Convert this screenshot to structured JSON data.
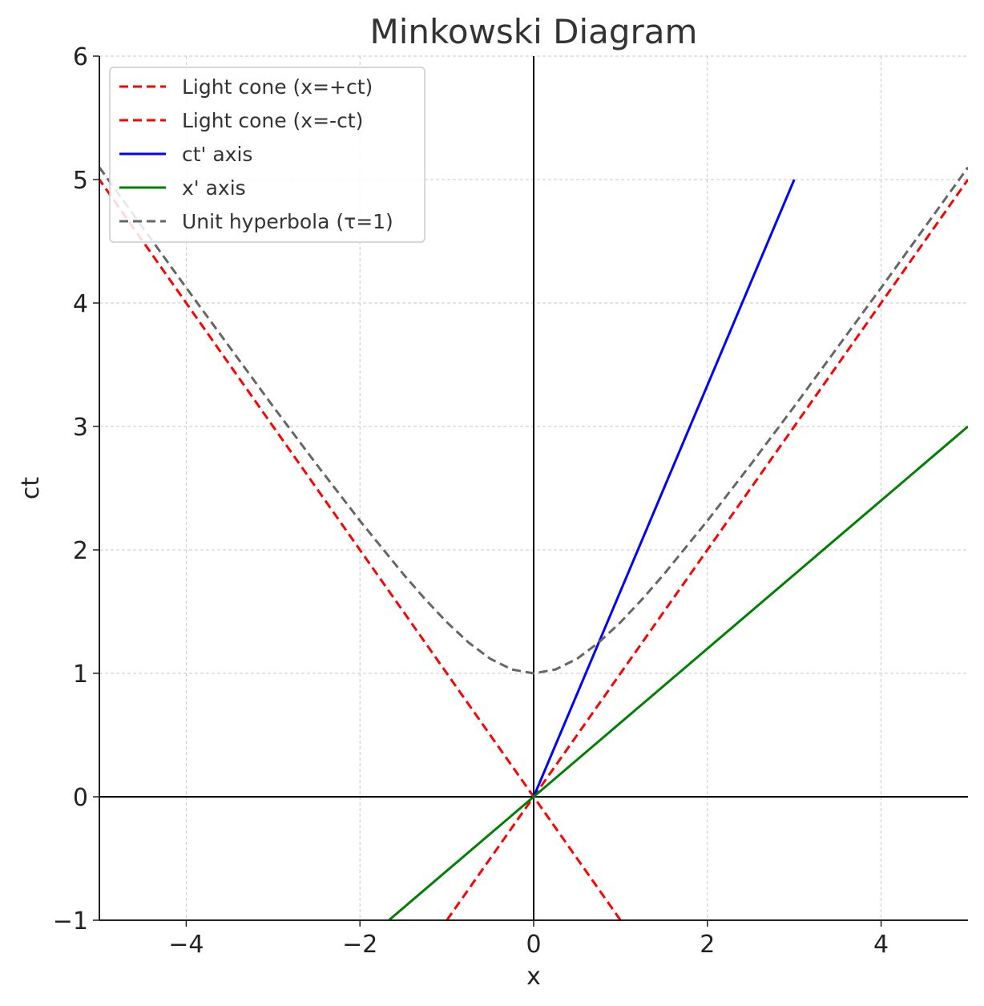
{
  "chart_data": {
    "type": "line",
    "title": "Minkowski Diagram",
    "xlabel": "x",
    "ylabel": "ct",
    "xlim": [
      -5,
      5
    ],
    "ylim": [
      -1,
      6
    ],
    "grid": true,
    "legend_position": "top-left",
    "x_ticks": [
      {
        "value": -4,
        "label": "−4"
      },
      {
        "value": -2,
        "label": "−2"
      },
      {
        "value": 0,
        "label": "0"
      },
      {
        "value": 2,
        "label": "2"
      },
      {
        "value": 4,
        "label": "4"
      }
    ],
    "y_ticks": [
      {
        "value": -1,
        "label": "−1"
      },
      {
        "value": 0,
        "label": "0"
      },
      {
        "value": 1,
        "label": "1"
      },
      {
        "value": 2,
        "label": "2"
      },
      {
        "value": 3,
        "label": "3"
      },
      {
        "value": 4,
        "label": "4"
      },
      {
        "value": 5,
        "label": "5"
      },
      {
        "value": 6,
        "label": "6"
      }
    ],
    "reference_lines": [
      {
        "orientation": "horizontal",
        "value": 0,
        "color": "#000000"
      },
      {
        "orientation": "vertical",
        "value": 0,
        "color": "#000000"
      }
    ],
    "series": [
      {
        "name": "Light cone (x=+ct)",
        "color": "#ff0000",
        "dashed": true,
        "points": [
          [
            -1,
            -1
          ],
          [
            5,
            5
          ]
        ]
      },
      {
        "name": "Light cone (x=-ct)",
        "color": "#ff0000",
        "dashed": true,
        "points": [
          [
            1,
            -1
          ],
          [
            -5,
            5
          ]
        ]
      },
      {
        "name": "ct' axis",
        "color": "#0000ff",
        "dashed": false,
        "points": [
          [
            0,
            0
          ],
          [
            3,
            5
          ]
        ]
      },
      {
        "name": "x' axis",
        "color": "#008000",
        "dashed": false,
        "points": [
          [
            -1.667,
            -1
          ],
          [
            5,
            3
          ]
        ]
      },
      {
        "name": "Unit hyperbola (τ=1)",
        "color": "#666666",
        "dashed": true,
        "points": [
          [
            -5,
            5.099
          ],
          [
            -4,
            4.123
          ],
          [
            -3,
            3.162
          ],
          [
            -2.5,
            2.693
          ],
          [
            -2,
            2.236
          ],
          [
            -1.5,
            1.803
          ],
          [
            -1.25,
            1.601
          ],
          [
            -1,
            1.414
          ],
          [
            -0.75,
            1.25
          ],
          [
            -0.5,
            1.118
          ],
          [
            -0.25,
            1.031
          ],
          [
            0,
            1
          ],
          [
            0.25,
            1.031
          ],
          [
            0.5,
            1.118
          ],
          [
            0.75,
            1.25
          ],
          [
            1,
            1.414
          ],
          [
            1.25,
            1.601
          ],
          [
            1.5,
            1.803
          ],
          [
            2,
            2.236
          ],
          [
            2.5,
            2.693
          ],
          [
            3,
            3.162
          ],
          [
            4,
            4.123
          ],
          [
            5,
            5.099
          ]
        ]
      }
    ]
  }
}
